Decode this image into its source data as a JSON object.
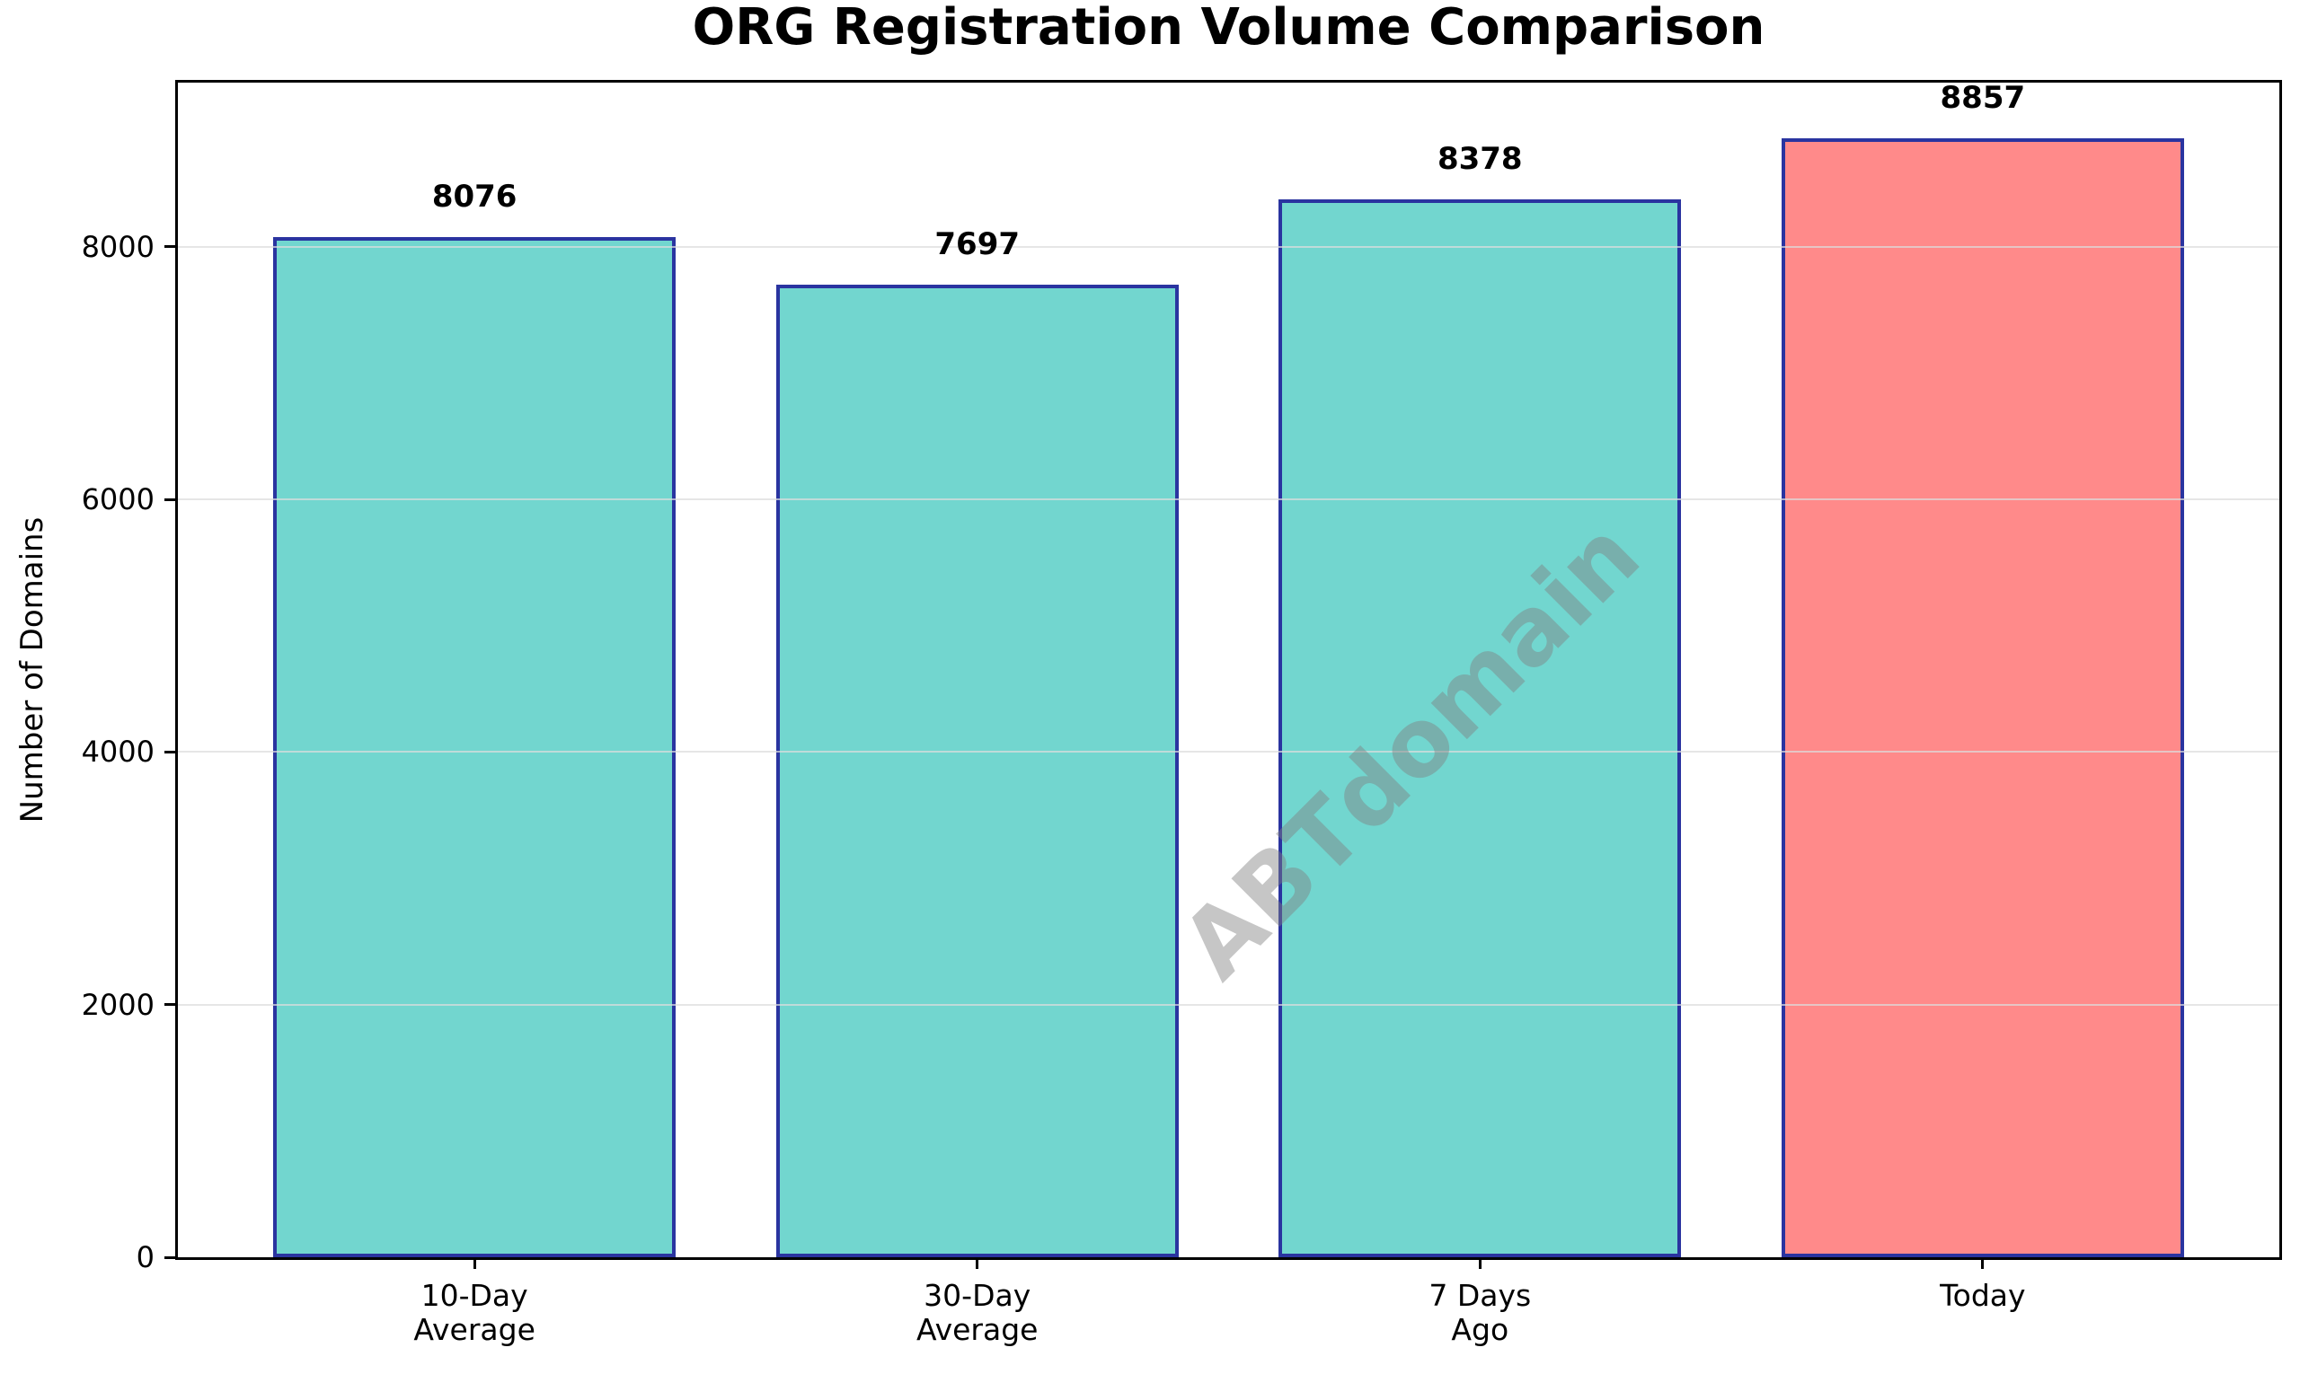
{
  "title": "ORG Registration Volume Comparison",
  "watermark": "ABTdomain",
  "chart_data": {
    "type": "bar",
    "title": "ORG Registration Volume Comparison",
    "xlabel": "",
    "ylabel": "Number of Domains",
    "categories": [
      "10-Day\nAverage",
      "30-Day\nAverage",
      "7 Days\nAgo",
      "Today"
    ],
    "values": [
      8076,
      7697,
      8378,
      8857
    ],
    "value_labels": [
      "8076",
      "7697",
      "8378",
      "8857"
    ],
    "bar_colors": [
      "#72D6CF",
      "#72D6CF",
      "#72D6CF",
      "#FF8A8A"
    ],
    "bar_edge_color": "#2A34A0",
    "ylim": [
      0,
      9300
    ],
    "yticks": [
      0,
      2000,
      4000,
      6000,
      8000
    ],
    "ytick_labels": [
      "0",
      "2000",
      "4000",
      "6000",
      "8000"
    ],
    "grid": true,
    "gridline_color": "#E6E6E6",
    "legend_position": "none",
    "watermark_text": "ABTdomain",
    "watermark_color": "#808080"
  }
}
